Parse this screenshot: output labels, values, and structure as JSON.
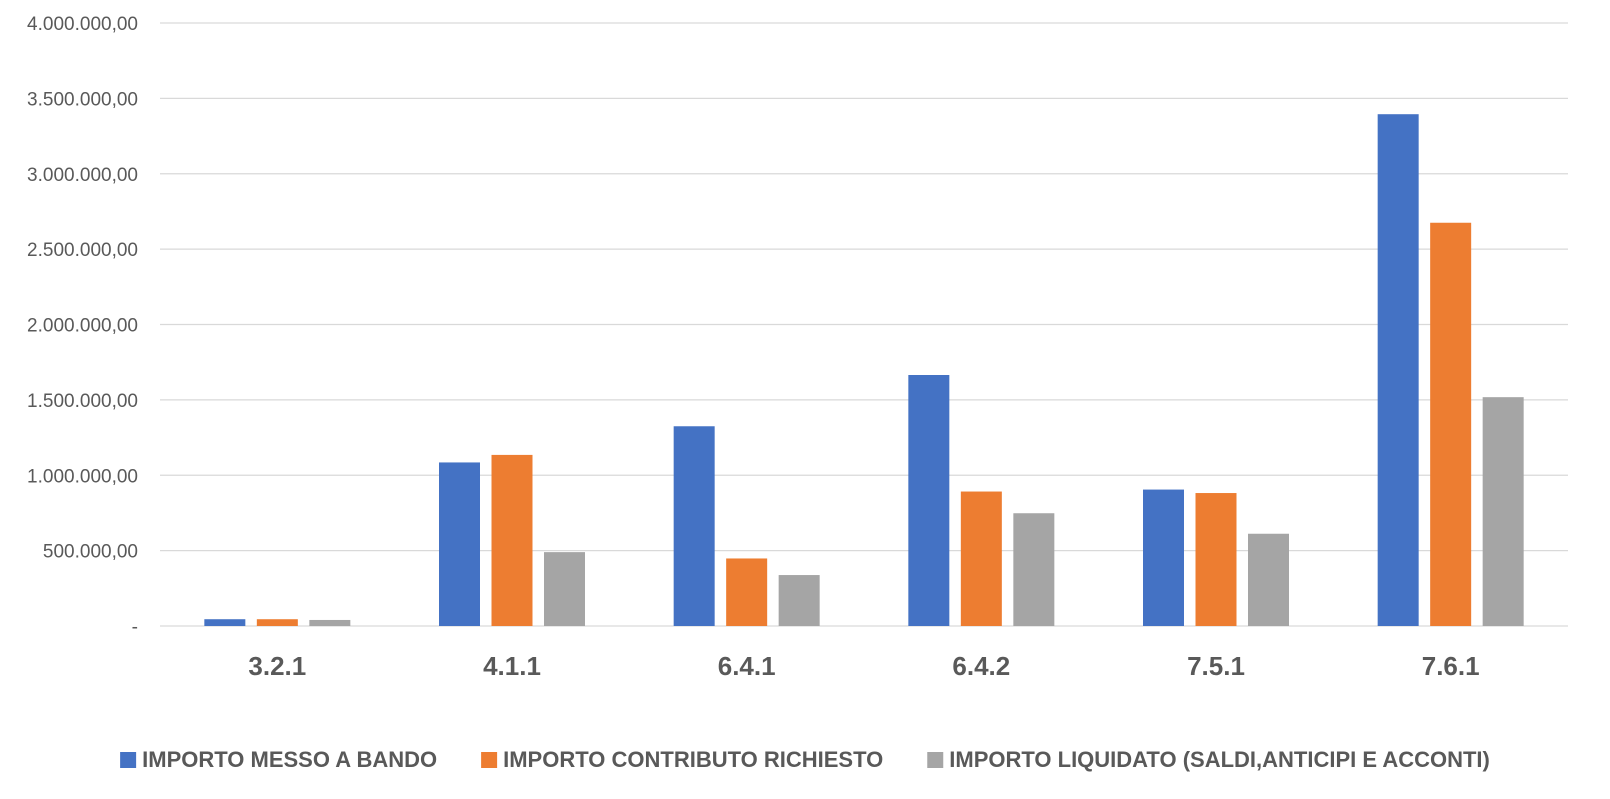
{
  "chart_data": {
    "type": "bar",
    "categories": [
      "3.2.1",
      "4.1.1",
      "6.4.1",
      "6.4.2",
      "7.5.1",
      "7.6.1"
    ],
    "series": [
      {
        "name": "IMPORTO MESSO A BANDO",
        "color": "#4472C4",
        "values": [
          45000,
          1085000,
          1325000,
          1665000,
          905000,
          3395000
        ]
      },
      {
        "name": "IMPORTO CONTRIBUTO RICHIESTO",
        "color": "#ED7D31",
        "values": [
          45000,
          1135000,
          448000,
          892000,
          882000,
          2675000
        ]
      },
      {
        "name": "IMPORTO LIQUIDATO (SALDI,ANTICIPI E ACCONTI)",
        "color": "#A5A5A5",
        "values": [
          40000,
          490000,
          338000,
          748000,
          612000,
          1518000
        ]
      }
    ],
    "ylim": [
      0,
      4000000
    ],
    "yticks": [
      0,
      500000,
      1000000,
      1500000,
      2000000,
      2500000,
      3000000,
      3500000,
      4000000
    ],
    "ytick_labels": [
      "-",
      "500.000,00",
      "1.000.000,00",
      "1.500.000,00",
      "2.000.000,00",
      "2.500.000,00",
      "3.000.000,00",
      "3.500.000,00",
      "4.000.000,00"
    ],
    "grid": true,
    "legend_position": "bottom"
  }
}
